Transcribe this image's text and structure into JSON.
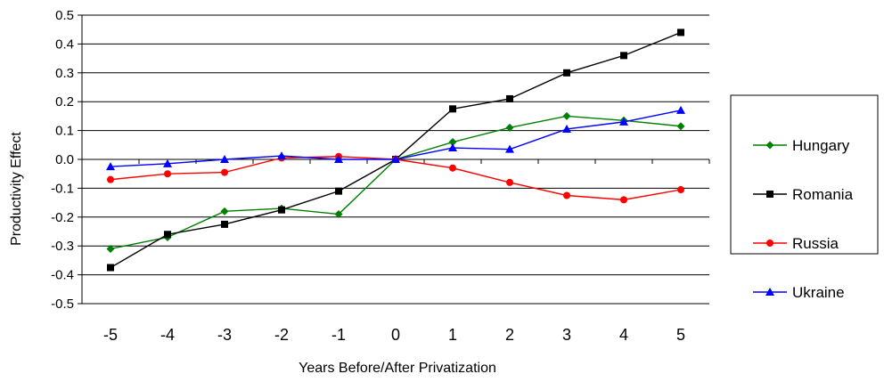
{
  "chart_data": {
    "type": "line",
    "xlabel": "Years Before/After Privatization",
    "ylabel": "Productivity Effect",
    "categories": [
      "-5",
      "-4",
      "-3",
      "-2",
      "-1",
      "0",
      "1",
      "2",
      "3",
      "4",
      "5"
    ],
    "y_ticks": [
      "0.5",
      "0.4",
      "0.3",
      "0.2",
      "0.1",
      "0.0",
      "-0.1",
      "-0.2",
      "-0.3",
      "-0.4",
      "-0.5"
    ],
    "ylim": [
      -0.5,
      0.5
    ],
    "grid": "horizontal",
    "legend_position": "right",
    "series": [
      {
        "name": "Hungary",
        "color": "#008000",
        "marker": "diamond",
        "values": [
          -0.31,
          -0.27,
          -0.18,
          -0.17,
          -0.19,
          0.0,
          0.06,
          0.11,
          0.15,
          0.135,
          0.115
        ]
      },
      {
        "name": "Romania",
        "color": "#000000",
        "marker": "square",
        "values": [
          -0.375,
          -0.26,
          -0.225,
          -0.175,
          -0.11,
          0.0,
          0.175,
          0.21,
          0.3,
          0.36,
          0.44
        ]
      },
      {
        "name": "Russia",
        "color": "#ff0000",
        "marker": "circle",
        "values": [
          -0.07,
          -0.05,
          -0.045,
          0.005,
          0.01,
          0.0,
          -0.03,
          -0.08,
          -0.125,
          -0.14,
          -0.105
        ]
      },
      {
        "name": "Ukraine",
        "color": "#0000ff",
        "marker": "triangle",
        "values": [
          -0.025,
          -0.015,
          0.0,
          0.012,
          0.0,
          0.0,
          0.04,
          0.035,
          0.105,
          0.13,
          0.17
        ]
      }
    ]
  }
}
